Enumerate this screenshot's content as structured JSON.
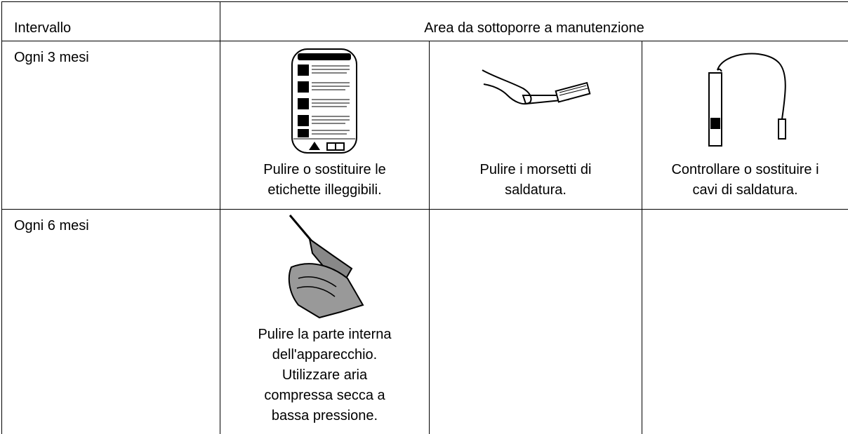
{
  "table": {
    "header": [
      "Intervallo",
      "Area da sottoporre a manutenzione"
    ],
    "rows": [
      {
        "interval": "Ogni 3 mesi",
        "cells": [
          [
            "Pulire o sostituire le",
            "etichette illeggibili."
          ],
          [
            "Pulire i morsetti di",
            "saldatura."
          ],
          [
            "Controllare o sostituire i",
            "cavi di saldatura."
          ]
        ]
      },
      {
        "interval": "Ogni 6 mesi",
        "cells": [
          [
            "Pulire la parte interna",
            "dell'apparecchio.",
            "Utilizzare aria",
            "compressa secca a",
            "bassa pressione."
          ]
        ]
      }
    ]
  }
}
